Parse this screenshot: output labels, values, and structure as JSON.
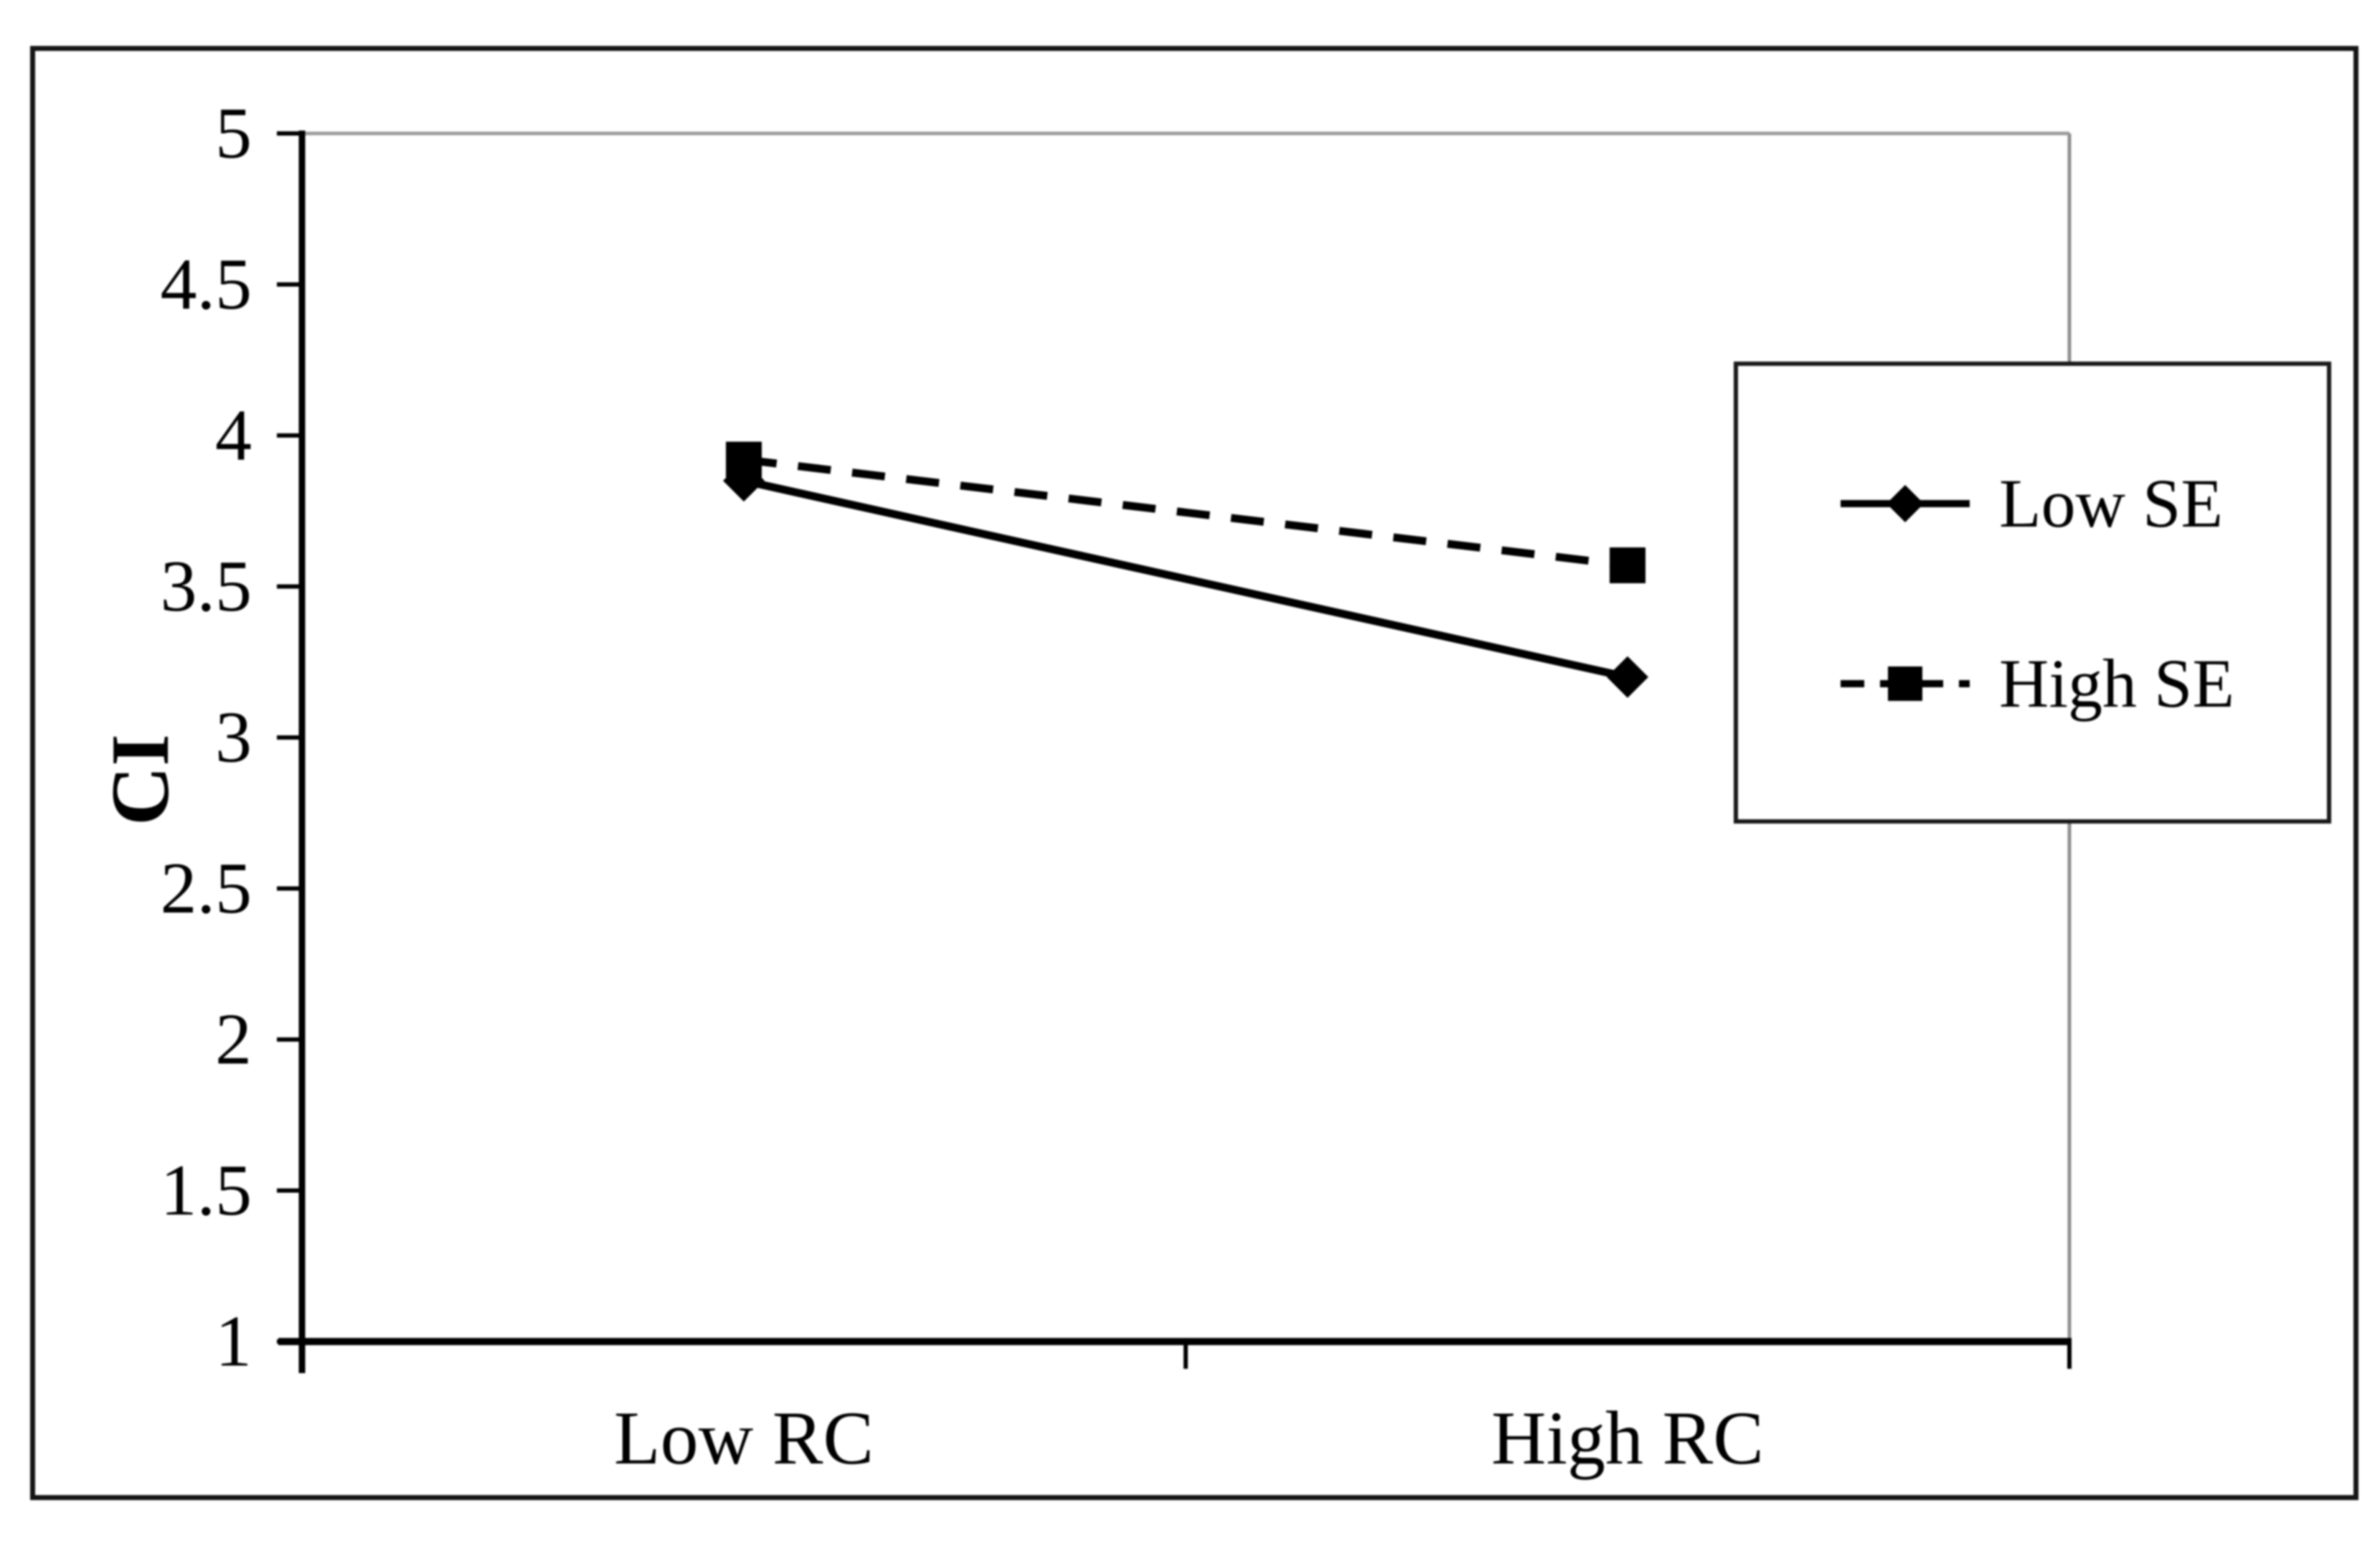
{
  "chart_data": {
    "type": "line",
    "categories": [
      "Low RC",
      "High RC"
    ],
    "series": [
      {
        "name": "Low SE",
        "values": [
          3.85,
          3.2
        ],
        "marker": "diamond",
        "line_style": "solid"
      },
      {
        "name": "High SE",
        "values": [
          3.92,
          3.57
        ],
        "marker": "square",
        "line_style": "dashed"
      }
    ],
    "title": "",
    "xlabel": "",
    "ylabel": "CI",
    "ylim": [
      1,
      5
    ],
    "yticks": [
      1,
      1.5,
      2,
      2.5,
      3,
      3.5,
      4,
      4.5,
      5
    ],
    "ytick_labels": [
      "1",
      "1.5",
      "2",
      "2.5",
      "3",
      "3.5",
      "4",
      "4.5",
      "5"
    ],
    "grid": false,
    "legend_position": "inside-right",
    "colors": {
      "series": "#000000",
      "plot_top_border": "#9c9c9c",
      "plot_right_border": "#8f8f8f",
      "axis": "#000000",
      "background": "#ffffff"
    }
  }
}
